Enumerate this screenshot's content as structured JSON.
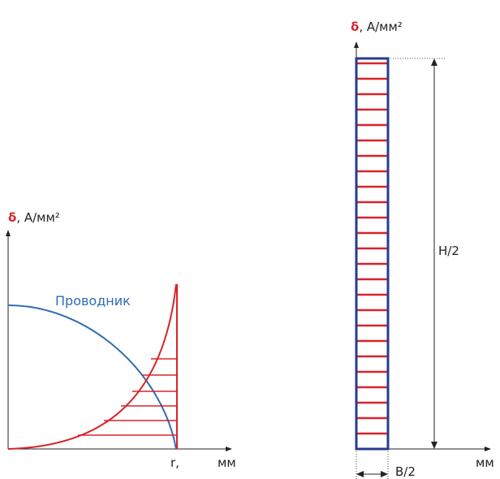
{
  "left_diagram": {
    "y_axis_symbol": "δ",
    "y_axis_unit": ", А/мм²",
    "x_axis_symbol": "r,",
    "x_axis_unit": "мм",
    "curve_label": "Проводник"
  },
  "right_diagram": {
    "y_axis_symbol": "δ",
    "y_axis_unit": ", А/мм²",
    "x_axis_unit": "мм",
    "height_label": "H/2",
    "width_label": "B/2"
  },
  "colors": {
    "red": "#d8232a",
    "blue": "#2e6db3",
    "navy": "#2b3a8c",
    "axis": "#222222"
  }
}
